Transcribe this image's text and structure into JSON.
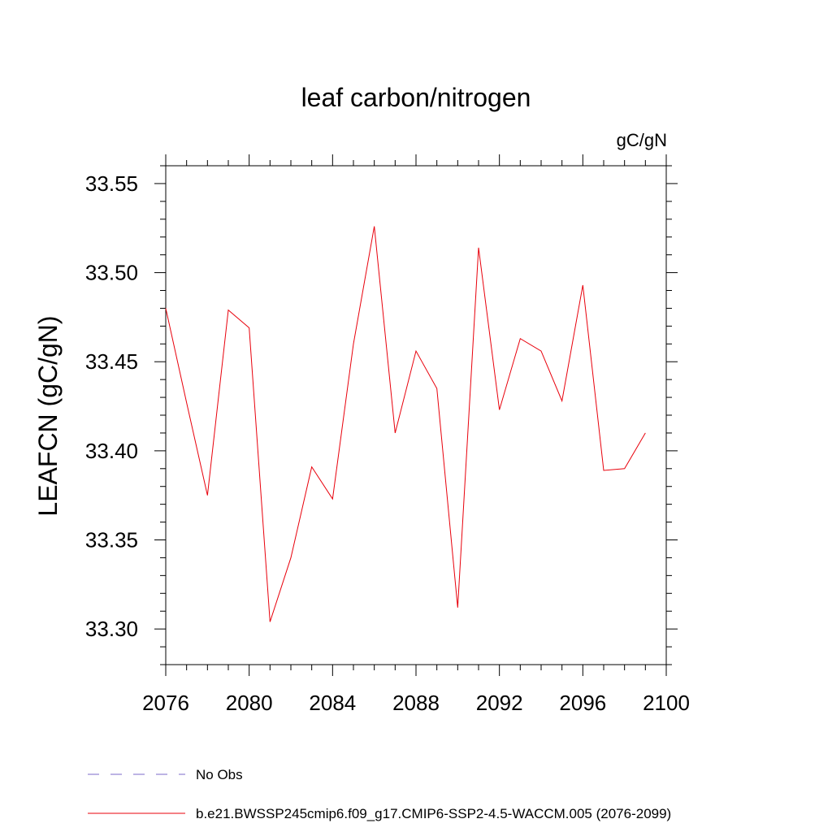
{
  "chart_data": {
    "type": "line",
    "title": "leaf carbon/nitrogen",
    "units_label": "gC/gN",
    "ylabel": "LEAFCN  (gC/gN)",
    "xlabel": "",
    "xlim": [
      2076,
      2100
    ],
    "ylim": [
      33.28,
      33.56
    ],
    "xticks": [
      2076,
      2080,
      2084,
      2088,
      2092,
      2096,
      2100
    ],
    "xtick_labels": [
      "2076",
      "2080",
      "2084",
      "2088",
      "2092",
      "2096",
      "2100"
    ],
    "yticks": [
      33.3,
      33.35,
      33.4,
      33.45,
      33.5,
      33.55
    ],
    "ytick_labels": [
      "33.30",
      "33.35",
      "33.40",
      "33.45",
      "33.50",
      "33.55"
    ],
    "grid": false,
    "legend_position": "bottom",
    "series": [
      {
        "name": "b.e21.BWSSP245cmip6.f09_g17.CMIP6-SSP2-4.5-WACCM.005 (2076-2099)",
        "color": "#e8000b",
        "dash": "solid",
        "x": [
          2076,
          2077,
          2078,
          2079,
          2080,
          2081,
          2082,
          2083,
          2084,
          2085,
          2086,
          2087,
          2088,
          2089,
          2090,
          2091,
          2092,
          2093,
          2094,
          2095,
          2096,
          2097,
          2098,
          2099
        ],
        "y": [
          33.48,
          33.427,
          33.375,
          33.479,
          33.469,
          33.304,
          33.34,
          33.391,
          33.373,
          33.46,
          33.526,
          33.41,
          33.456,
          33.435,
          33.312,
          33.514,
          33.423,
          33.463,
          33.456,
          33.428,
          33.493,
          33.389,
          33.39,
          33.41
        ]
      }
    ],
    "legend": [
      {
        "label": "No Obs",
        "color": "#7b68c8",
        "dash": "dashed"
      },
      {
        "label": "b.e21.BWSSP245cmip6.f09_g17.CMIP6-SSP2-4.5-WACCM.005 (2076-2099)",
        "color": "#e8000b",
        "dash": "solid"
      }
    ]
  }
}
